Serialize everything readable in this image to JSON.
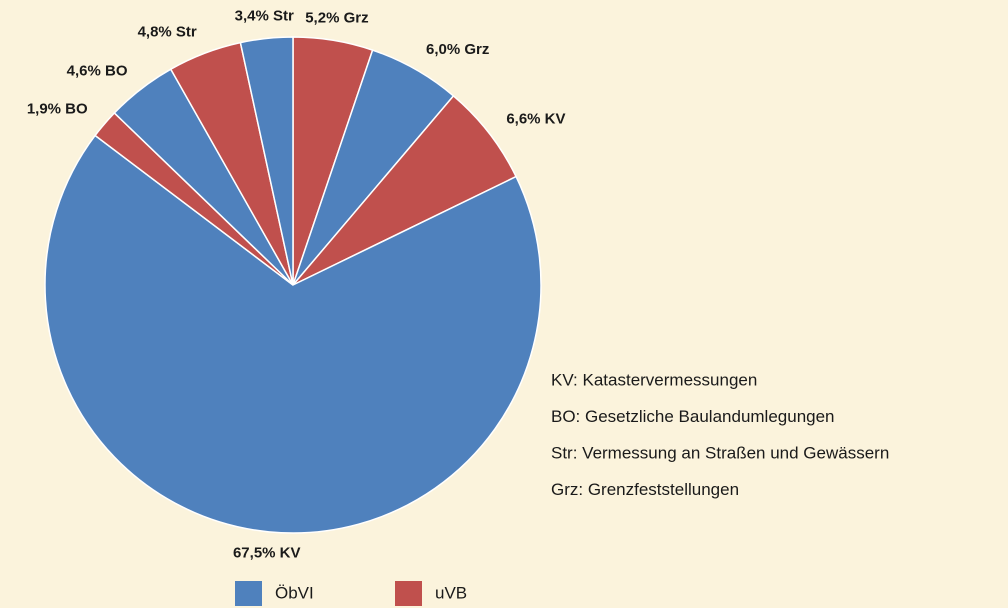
{
  "chart_data": {
    "type": "pie",
    "categories": [
      "Grz",
      "Grz",
      "KV",
      "KV",
      "BO",
      "BO",
      "Str",
      "Str"
    ],
    "values": [
      5.2,
      6.0,
      6.6,
      67.5,
      1.9,
      4.6,
      4.8,
      3.4
    ],
    "value_labels": [
      "5,2% Grz",
      "6,0% Grz",
      "6,6% KV",
      "67,5% KV",
      "1,9% BO",
      "4,6% BO",
      "4,8% Str",
      "3,4% Str"
    ],
    "colors": [
      "#c0504d",
      "#4f81bd",
      "#c0504d",
      "#4f81bd",
      "#c0504d",
      "#4f81bd",
      "#c0504d",
      "#4f81bd"
    ],
    "legend": [
      {
        "name": "ÖbVI",
        "color": "#4f81bd"
      },
      {
        "name": "uVB",
        "color": "#c0504d"
      }
    ],
    "annotations": [
      "KV: Katastervermessungen",
      "BO: Gesetzliche Baulandumlegungen",
      "Str: Vermessung an Straßen und Gewässern",
      "Grz: Grenzfeststellungen"
    ]
  }
}
